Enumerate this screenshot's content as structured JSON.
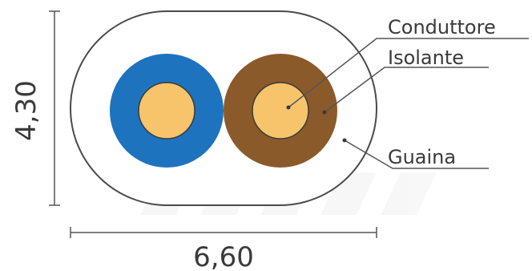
{
  "dimensions": {
    "height": "4,30",
    "width": "6,60"
  },
  "labels": {
    "conductor": "Conduttore",
    "insulation": "Isolante",
    "sheath": "Guaina"
  },
  "colors": {
    "sheath": "#ffffff",
    "outline": "#4a4a4a",
    "blue_insulation": "#1e73be",
    "brown_insulation": "#8b5a2b",
    "conductor": "#f7c46c",
    "lines": "#555555",
    "watermark": "#eeeeee"
  }
}
